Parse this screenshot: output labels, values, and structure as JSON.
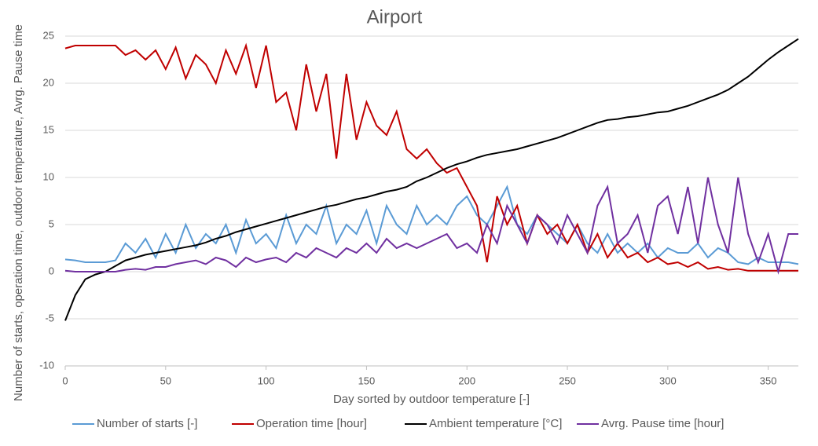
{
  "chart_data": {
    "type": "line",
    "title": "Airport",
    "x_label": "Day sorted by outdoor temperature [-]",
    "y_label": "Number of starts, operation time, outdoor temperature, Avrg. Pause time",
    "x": [
      0,
      5,
      10,
      15,
      20,
      25,
      30,
      35,
      40,
      45,
      50,
      55,
      60,
      65,
      70,
      75,
      80,
      85,
      90,
      95,
      100,
      105,
      110,
      115,
      120,
      125,
      130,
      135,
      140,
      145,
      150,
      155,
      160,
      165,
      170,
      175,
      180,
      185,
      190,
      195,
      200,
      205,
      210,
      215,
      220,
      225,
      230,
      235,
      240,
      245,
      250,
      255,
      260,
      265,
      270,
      275,
      280,
      285,
      290,
      295,
      300,
      305,
      310,
      315,
      320,
      325,
      330,
      335,
      340,
      345,
      350,
      355,
      360,
      365
    ],
    "series": [
      {
        "name": "Number of starts [-]",
        "color": "#5b9bd5",
        "values": [
          1.3,
          1.2,
          1,
          1,
          1,
          1.2,
          3,
          2,
          3.5,
          1.5,
          4,
          2,
          5,
          2.5,
          4,
          3,
          5,
          2,
          5.5,
          3,
          4,
          2.5,
          6,
          3,
          5,
          4,
          7,
          3,
          5,
          4,
          6.5,
          3,
          7,
          5,
          4,
          7,
          5,
          6,
          5,
          7,
          8,
          6,
          5,
          7,
          9,
          5,
          4,
          6,
          5,
          4,
          3,
          5,
          3,
          2,
          4,
          2,
          3,
          2,
          3,
          1.5,
          2.5,
          2,
          2,
          3,
          1.5,
          2.5,
          2,
          1,
          0.8,
          1.5,
          1,
          1,
          1,
          0.8
        ]
      },
      {
        "name": "Operation time [hour]",
        "color": "#c00000",
        "values": [
          23.7,
          24,
          24,
          24,
          24,
          24,
          23,
          23.5,
          22.5,
          23.5,
          21.5,
          23.8,
          20.5,
          23,
          22,
          20,
          23.5,
          21,
          24,
          19.5,
          24,
          18,
          19,
          15,
          22,
          17,
          21,
          12,
          21,
          14,
          18,
          15.5,
          14.5,
          17,
          13,
          12,
          13,
          11.5,
          10.5,
          11,
          9,
          7,
          1,
          8,
          5,
          7,
          3,
          6,
          4,
          5,
          3,
          5,
          2,
          4,
          1.5,
          3,
          1.5,
          2,
          1,
          1.5,
          0.8,
          1,
          0.5,
          1,
          0.3,
          0.5,
          0.2,
          0.3,
          0.1,
          0.1,
          0.1,
          0.1,
          0.1,
          0.1
        ]
      },
      {
        "name": "Ambient temperature [°C]",
        "color": "#000000",
        "values": [
          -5.2,
          -2.5,
          -0.8,
          -0.3,
          0,
          0.6,
          1.2,
          1.5,
          1.8,
          2,
          2.2,
          2.4,
          2.6,
          2.8,
          3.1,
          3.5,
          3.8,
          4.2,
          4.5,
          4.8,
          5.1,
          5.4,
          5.7,
          6,
          6.3,
          6.6,
          6.9,
          7.1,
          7.4,
          7.7,
          7.9,
          8.2,
          8.5,
          8.7,
          9,
          9.6,
          10,
          10.5,
          11,
          11.4,
          11.7,
          12.1,
          12.4,
          12.6,
          12.8,
          13,
          13.3,
          13.6,
          13.9,
          14.2,
          14.6,
          15,
          15.4,
          15.8,
          16.1,
          16.2,
          16.4,
          16.5,
          16.7,
          16.9,
          17,
          17.3,
          17.6,
          18,
          18.4,
          18.8,
          19.3,
          20,
          20.7,
          21.6,
          22.5,
          23.3,
          24,
          24.7
        ]
      },
      {
        "name": "Avrg. Pause time [hour]",
        "color": "#7030a0",
        "values": [
          0.1,
          0,
          0,
          0,
          0,
          0,
          0.2,
          0.3,
          0.2,
          0.5,
          0.5,
          0.8,
          1,
          1.2,
          0.8,
          1.5,
          1.2,
          0.5,
          1.5,
          1,
          1.3,
          1.5,
          1,
          2,
          1.5,
          2.5,
          2,
          1.5,
          2.5,
          2,
          3,
          2,
          3.5,
          2.5,
          3,
          2.5,
          3,
          3.5,
          4,
          2.5,
          3,
          2,
          5,
          3,
          7,
          5,
          3,
          6,
          5,
          3,
          6,
          4,
          2,
          7,
          9,
          3,
          4,
          6,
          2,
          7,
          8,
          4,
          9,
          3,
          10,
          5,
          2,
          10,
          4,
          1,
          4,
          0,
          4,
          4
        ]
      }
    ],
    "xlim": [
      0,
      365
    ],
    "xticks": [
      0,
      50,
      100,
      150,
      200,
      250,
      300,
      350
    ],
    "ylim": [
      -10,
      25
    ],
    "yticks": [
      -10,
      -5,
      0,
      5,
      10,
      15,
      20,
      25
    ],
    "grid": true,
    "legend": "bottom"
  }
}
